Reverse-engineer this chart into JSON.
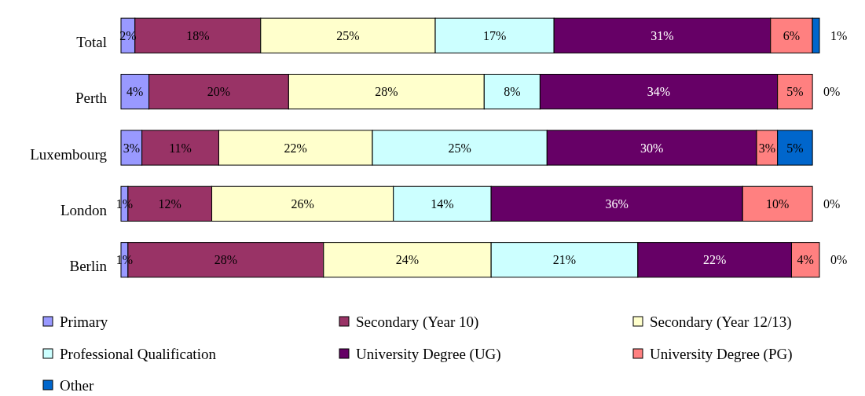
{
  "chart_data": {
    "type": "bar",
    "orientation": "horizontal",
    "stacked": true,
    "categories": [
      "Total",
      "Perth",
      "Luxembourg",
      "London",
      "Berlin"
    ],
    "xlim": [
      0,
      100
    ],
    "legend": "bottom",
    "series": [
      {
        "name": "Primary",
        "color": "#9999ff",
        "values": [
          2,
          4,
          3,
          1,
          1
        ],
        "value_labels": [
          "2%",
          "4%",
          "3%",
          "1%",
          "1%"
        ]
      },
      {
        "name": "Secondary (Year 10)",
        "color": "#993366",
        "values": [
          18,
          20,
          11,
          12,
          28
        ],
        "value_labels": [
          "18%",
          "20%",
          "11%",
          "12%",
          "28%"
        ]
      },
      {
        "name": "Secondary (Year 12/13)",
        "color": "#ffffcc",
        "values": [
          25,
          28,
          22,
          26,
          24
        ],
        "value_labels": [
          "25%",
          "28%",
          "22%",
          "26%",
          "24%"
        ]
      },
      {
        "name": "Professional Qualification",
        "color": "#ccffff",
        "values": [
          17,
          8,
          25,
          14,
          21
        ],
        "value_labels": [
          "17%",
          "8%",
          "25%",
          "14%",
          "21%"
        ]
      },
      {
        "name": "University Degree (UG)",
        "color": "#660066",
        "values": [
          31,
          34,
          30,
          36,
          22
        ],
        "value_labels": [
          "31%",
          "34%",
          "30%",
          "36%",
          "22%"
        ]
      },
      {
        "name": "University Degree (PG)",
        "color": "#ff8080",
        "values": [
          6,
          5,
          3,
          10,
          4
        ],
        "value_labels": [
          "6%",
          "5%",
          "3%",
          "10%",
          "4%"
        ]
      },
      {
        "name": "Other",
        "color": "#0066cc",
        "values": [
          1,
          0,
          5,
          0,
          0
        ],
        "value_labels": [
          "1%",
          "0%",
          "5%",
          "0%",
          "0%"
        ]
      }
    ]
  }
}
